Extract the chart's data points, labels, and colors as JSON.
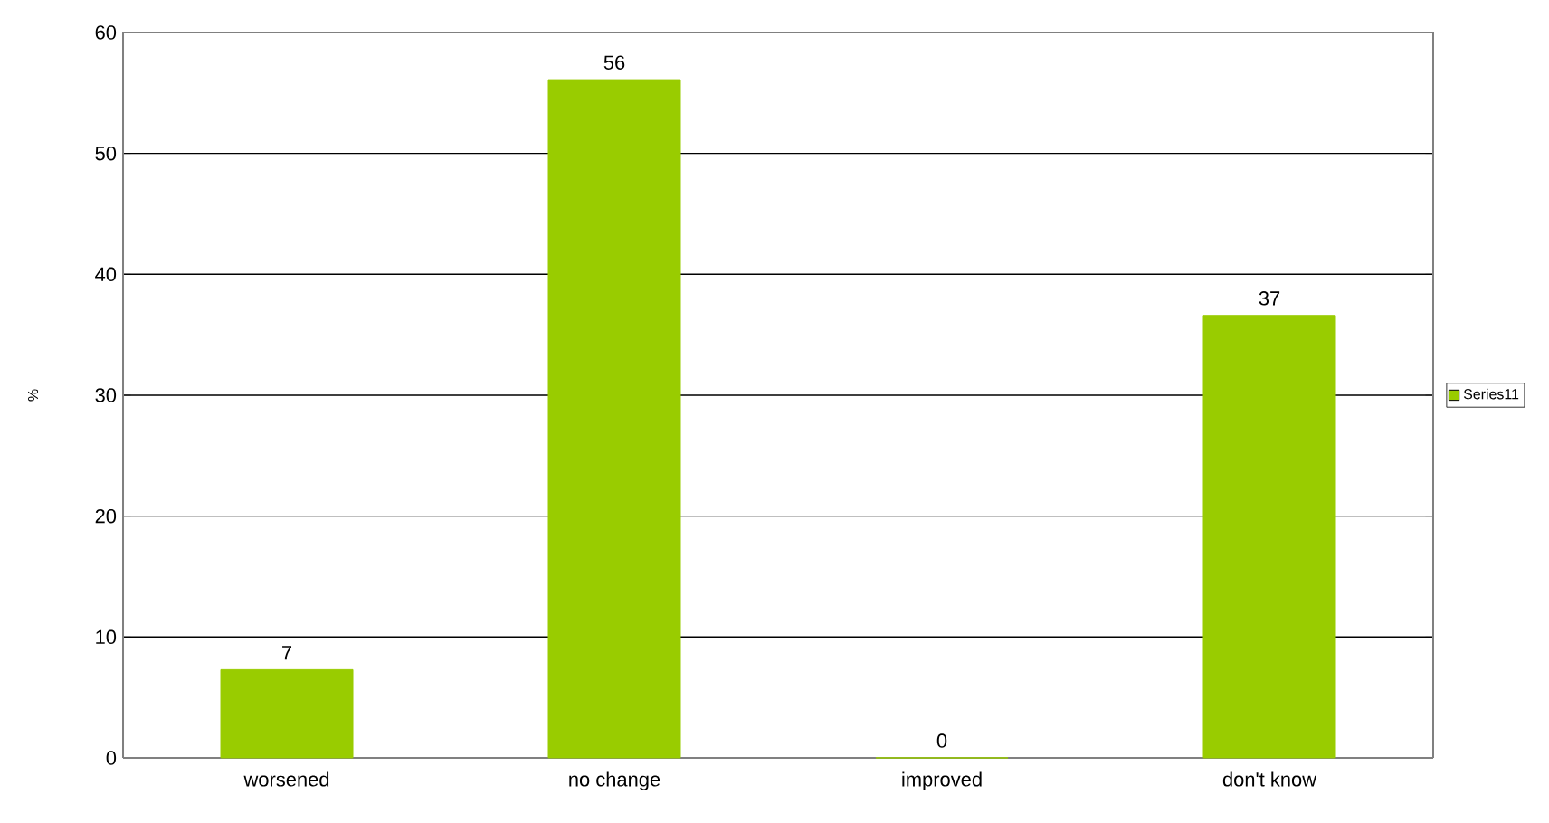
{
  "chart_data": {
    "type": "bar",
    "ylabel": "%",
    "categories": [
      "worsened",
      "no change",
      "improved",
      "don't know"
    ],
    "series": [
      {
        "name": "Series11",
        "color": "#99cc00",
        "values": [
          7.3,
          56.1,
          0,
          36.6
        ],
        "value_labels": [
          "7",
          "56",
          "0",
          "37"
        ]
      }
    ],
    "ylim": [
      0,
      60
    ],
    "yticks": [
      0,
      10,
      20,
      30,
      40,
      50,
      60
    ],
    "grid": "y",
    "legend": "right"
  }
}
